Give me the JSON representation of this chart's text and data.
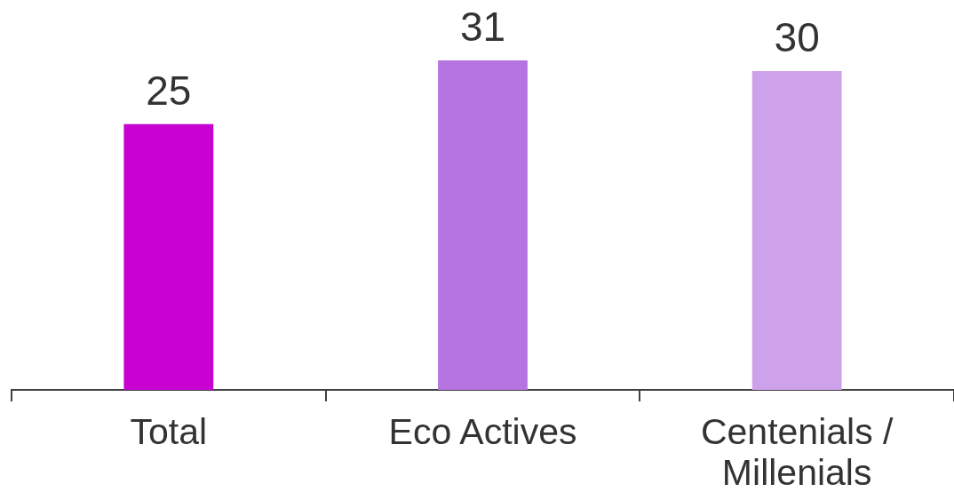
{
  "chart_data": {
    "type": "bar",
    "categories": [
      "Total",
      "Eco Actives",
      "Centenials / Millenials"
    ],
    "values": [
      25,
      31,
      30
    ],
    "colors": [
      "#c800d2",
      "#b574e0",
      "#cea2ea"
    ],
    "data_labels": true,
    "grid": false,
    "tick_labels": "x"
  }
}
